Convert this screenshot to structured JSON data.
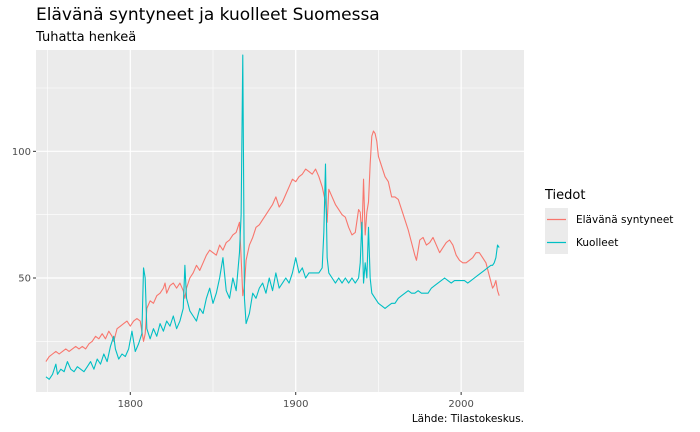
{
  "chart_data": {
    "type": "line",
    "title": "Elävänä syntyneet ja kuolleet Suomessa",
    "subtitle": "Tuhatta henkeä",
    "caption": "Lähde: Tilastokeskus.",
    "xlabel": "",
    "ylabel": "",
    "xlim": [
      1743,
      2038
    ],
    "ylim": [
      5,
      140
    ],
    "x_ticks": [
      1800,
      1900,
      2000
    ],
    "y_ticks": [
      50,
      100
    ],
    "grid": true,
    "legend": {
      "title": "Tiedot",
      "position": "right"
    },
    "series": [
      {
        "name": "Elävänä syntyneet",
        "color": "#F8766D",
        "points": [
          [
            1749,
            17
          ],
          [
            1751,
            19
          ],
          [
            1753,
            20
          ],
          [
            1755,
            21
          ],
          [
            1757,
            20
          ],
          [
            1759,
            21
          ],
          [
            1761,
            22
          ],
          [
            1763,
            21
          ],
          [
            1765,
            22
          ],
          [
            1767,
            23
          ],
          [
            1769,
            22
          ],
          [
            1771,
            23
          ],
          [
            1773,
            22
          ],
          [
            1775,
            24
          ],
          [
            1777,
            25
          ],
          [
            1779,
            27
          ],
          [
            1781,
            26
          ],
          [
            1783,
            28
          ],
          [
            1785,
            26
          ],
          [
            1787,
            29
          ],
          [
            1789,
            27
          ],
          [
            1790,
            25
          ],
          [
            1792,
            30
          ],
          [
            1794,
            31
          ],
          [
            1796,
            32
          ],
          [
            1798,
            33
          ],
          [
            1800,
            31
          ],
          [
            1802,
            33
          ],
          [
            1804,
            34
          ],
          [
            1806,
            33
          ],
          [
            1808,
            25
          ],
          [
            1809,
            28
          ],
          [
            1810,
            38
          ],
          [
            1812,
            41
          ],
          [
            1814,
            40
          ],
          [
            1816,
            43
          ],
          [
            1818,
            44
          ],
          [
            1820,
            46
          ],
          [
            1821,
            48
          ],
          [
            1822,
            44
          ],
          [
            1824,
            47
          ],
          [
            1826,
            48
          ],
          [
            1828,
            46
          ],
          [
            1830,
            48
          ],
          [
            1832,
            45
          ],
          [
            1833,
            42
          ],
          [
            1834,
            46
          ],
          [
            1836,
            50
          ],
          [
            1838,
            52
          ],
          [
            1840,
            55
          ],
          [
            1842,
            53
          ],
          [
            1844,
            56
          ],
          [
            1846,
            59
          ],
          [
            1848,
            61
          ],
          [
            1850,
            60
          ],
          [
            1852,
            59
          ],
          [
            1854,
            63
          ],
          [
            1856,
            61
          ],
          [
            1858,
            64
          ],
          [
            1860,
            65
          ],
          [
            1862,
            67
          ],
          [
            1864,
            68
          ],
          [
            1866,
            72
          ],
          [
            1867,
            58
          ],
          [
            1868,
            43
          ],
          [
            1869,
            47
          ],
          [
            1870,
            57
          ],
          [
            1872,
            63
          ],
          [
            1874,
            66
          ],
          [
            1876,
            70
          ],
          [
            1878,
            71
          ],
          [
            1880,
            73
          ],
          [
            1882,
            75
          ],
          [
            1884,
            77
          ],
          [
            1886,
            79
          ],
          [
            1888,
            82
          ],
          [
            1890,
            78
          ],
          [
            1892,
            80
          ],
          [
            1894,
            83
          ],
          [
            1896,
            86
          ],
          [
            1898,
            89
          ],
          [
            1900,
            88
          ],
          [
            1902,
            90
          ],
          [
            1904,
            91
          ],
          [
            1906,
            93
          ],
          [
            1908,
            92
          ],
          [
            1910,
            91
          ],
          [
            1912,
            93
          ],
          [
            1914,
            90
          ],
          [
            1916,
            86
          ],
          [
            1918,
            80
          ],
          [
            1919,
            72
          ],
          [
            1920,
            85
          ],
          [
            1922,
            82
          ],
          [
            1924,
            79
          ],
          [
            1926,
            77
          ],
          [
            1928,
            75
          ],
          [
            1930,
            74
          ],
          [
            1932,
            70
          ],
          [
            1934,
            67
          ],
          [
            1936,
            68
          ],
          [
            1938,
            77
          ],
          [
            1939,
            76
          ],
          [
            1940,
            66
          ],
          [
            1941,
            89
          ],
          [
            1942,
            67
          ],
          [
            1943,
            76
          ],
          [
            1944,
            80
          ],
          [
            1945,
            95
          ],
          [
            1946,
            106
          ],
          [
            1947,
            108
          ],
          [
            1948,
            107
          ],
          [
            1949,
            104
          ],
          [
            1950,
            98
          ],
          [
            1952,
            94
          ],
          [
            1954,
            90
          ],
          [
            1956,
            88
          ],
          [
            1958,
            82
          ],
          [
            1960,
            82
          ],
          [
            1962,
            81
          ],
          [
            1964,
            77
          ],
          [
            1966,
            73
          ],
          [
            1968,
            69
          ],
          [
            1970,
            64
          ],
          [
            1972,
            59
          ],
          [
            1973,
            57
          ],
          [
            1975,
            65
          ],
          [
            1977,
            66
          ],
          [
            1979,
            63
          ],
          [
            1981,
            64
          ],
          [
            1983,
            66
          ],
          [
            1985,
            63
          ],
          [
            1987,
            60
          ],
          [
            1989,
            62
          ],
          [
            1991,
            64
          ],
          [
            1993,
            65
          ],
          [
            1995,
            63
          ],
          [
            1997,
            59
          ],
          [
            1999,
            57
          ],
          [
            2001,
            56
          ],
          [
            2003,
            56
          ],
          [
            2005,
            57
          ],
          [
            2007,
            58
          ],
          [
            2009,
            60
          ],
          [
            2011,
            60
          ],
          [
            2013,
            58
          ],
          [
            2015,
            56
          ],
          [
            2017,
            51
          ],
          [
            2019,
            46
          ],
          [
            2020,
            47
          ],
          [
            2021,
            49
          ],
          [
            2022,
            45
          ],
          [
            2023,
            43
          ]
        ]
      },
      {
        "name": "Kuolleet",
        "color": "#00BFC4",
        "points": [
          [
            1749,
            11
          ],
          [
            1751,
            10
          ],
          [
            1753,
            12
          ],
          [
            1755,
            16
          ],
          [
            1756,
            12
          ],
          [
            1758,
            14
          ],
          [
            1760,
            13
          ],
          [
            1762,
            17
          ],
          [
            1764,
            14
          ],
          [
            1766,
            13
          ],
          [
            1768,
            15
          ],
          [
            1770,
            14
          ],
          [
            1772,
            13
          ],
          [
            1774,
            15
          ],
          [
            1776,
            17
          ],
          [
            1778,
            14
          ],
          [
            1780,
            18
          ],
          [
            1782,
            16
          ],
          [
            1784,
            20
          ],
          [
            1786,
            17
          ],
          [
            1788,
            23
          ],
          [
            1790,
            27
          ],
          [
            1791,
            22
          ],
          [
            1793,
            18
          ],
          [
            1795,
            20
          ],
          [
            1797,
            19
          ],
          [
            1799,
            22
          ],
          [
            1801,
            29
          ],
          [
            1803,
            21
          ],
          [
            1805,
            24
          ],
          [
            1807,
            28
          ],
          [
            1808,
            54
          ],
          [
            1809,
            50
          ],
          [
            1810,
            30
          ],
          [
            1812,
            26
          ],
          [
            1814,
            30
          ],
          [
            1816,
            27
          ],
          [
            1818,
            32
          ],
          [
            1820,
            29
          ],
          [
            1822,
            33
          ],
          [
            1824,
            31
          ],
          [
            1826,
            35
          ],
          [
            1828,
            30
          ],
          [
            1830,
            33
          ],
          [
            1832,
            38
          ],
          [
            1833,
            55
          ],
          [
            1834,
            42
          ],
          [
            1836,
            37
          ],
          [
            1838,
            35
          ],
          [
            1840,
            33
          ],
          [
            1842,
            38
          ],
          [
            1844,
            36
          ],
          [
            1846,
            42
          ],
          [
            1848,
            46
          ],
          [
            1850,
            40
          ],
          [
            1852,
            44
          ],
          [
            1854,
            50
          ],
          [
            1856,
            58
          ],
          [
            1858,
            45
          ],
          [
            1860,
            42
          ],
          [
            1862,
            50
          ],
          [
            1864,
            45
          ],
          [
            1866,
            60
          ],
          [
            1867,
            75
          ],
          [
            1868,
            138
          ],
          [
            1869,
            42
          ],
          [
            1870,
            32
          ],
          [
            1872,
            36
          ],
          [
            1874,
            44
          ],
          [
            1876,
            42
          ],
          [
            1878,
            46
          ],
          [
            1880,
            48
          ],
          [
            1882,
            44
          ],
          [
            1884,
            50
          ],
          [
            1886,
            45
          ],
          [
            1888,
            52
          ],
          [
            1890,
            46
          ],
          [
            1892,
            48
          ],
          [
            1894,
            50
          ],
          [
            1896,
            48
          ],
          [
            1898,
            52
          ],
          [
            1900,
            58
          ],
          [
            1902,
            52
          ],
          [
            1904,
            54
          ],
          [
            1906,
            50
          ],
          [
            1908,
            52
          ],
          [
            1910,
            52
          ],
          [
            1912,
            52
          ],
          [
            1914,
            52
          ],
          [
            1916,
            54
          ],
          [
            1917,
            68
          ],
          [
            1918,
            95
          ],
          [
            1919,
            58
          ],
          [
            1920,
            52
          ],
          [
            1922,
            50
          ],
          [
            1924,
            48
          ],
          [
            1926,
            50
          ],
          [
            1928,
            48
          ],
          [
            1930,
            50
          ],
          [
            1932,
            48
          ],
          [
            1934,
            50
          ],
          [
            1936,
            48
          ],
          [
            1938,
            50
          ],
          [
            1939,
            56
          ],
          [
            1940,
            72
          ],
          [
            1941,
            48
          ],
          [
            1942,
            56
          ],
          [
            1943,
            50
          ],
          [
            1944,
            70
          ],
          [
            1945,
            50
          ],
          [
            1946,
            44
          ],
          [
            1948,
            42
          ],
          [
            1950,
            40
          ],
          [
            1952,
            39
          ],
          [
            1954,
            38
          ],
          [
            1956,
            39
          ],
          [
            1958,
            40
          ],
          [
            1960,
            40
          ],
          [
            1962,
            42
          ],
          [
            1964,
            43
          ],
          [
            1966,
            44
          ],
          [
            1968,
            45
          ],
          [
            1970,
            44
          ],
          [
            1972,
            44
          ],
          [
            1974,
            45
          ],
          [
            1976,
            44
          ],
          [
            1978,
            44
          ],
          [
            1980,
            44
          ],
          [
            1982,
            46
          ],
          [
            1984,
            47
          ],
          [
            1986,
            48
          ],
          [
            1988,
            49
          ],
          [
            1990,
            50
          ],
          [
            1992,
            49
          ],
          [
            1994,
            48
          ],
          [
            1996,
            49
          ],
          [
            1998,
            49
          ],
          [
            2000,
            49
          ],
          [
            2002,
            49
          ],
          [
            2004,
            48
          ],
          [
            2006,
            49
          ],
          [
            2008,
            50
          ],
          [
            2010,
            51
          ],
          [
            2012,
            52
          ],
          [
            2014,
            53
          ],
          [
            2016,
            54
          ],
          [
            2018,
            55
          ],
          [
            2019,
            55
          ],
          [
            2020,
            56
          ],
          [
            2021,
            58
          ],
          [
            2022,
            63
          ],
          [
            2023,
            62
          ]
        ]
      }
    ]
  }
}
